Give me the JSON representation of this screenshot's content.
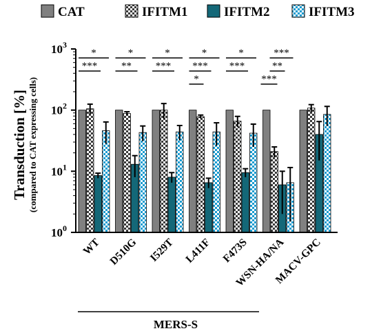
{
  "chart_data": {
    "type": "bar",
    "y_scale": "log",
    "ylim": [
      1,
      1000
    ],
    "yticks": [
      {
        "value": 1,
        "base": "10",
        "exp": "0"
      },
      {
        "value": 10,
        "base": "10",
        "exp": "1"
      },
      {
        "value": 100,
        "base": "10",
        "exp": "2"
      },
      {
        "value": 1000,
        "base": "10",
        "exp": "3"
      }
    ],
    "ylabel": "Transduction [%]",
    "ylabel_sub": "(compared to CAT expressing cells)",
    "categories": [
      "WT",
      "D510G",
      "I529T",
      "L411F",
      "F473S",
      "WSN-HA/NA",
      "MACV-GPC"
    ],
    "group_label": "MERS-S",
    "grid": false,
    "legend_position": "top",
    "series": [
      {
        "name": "CAT",
        "color": "#808080",
        "pattern": "solid",
        "values": [
          100,
          100,
          100,
          100,
          100,
          100,
          100
        ],
        "errors": [
          0,
          0,
          0,
          0,
          0,
          0,
          0
        ]
      },
      {
        "name": "IFITM1",
        "color": "#3a3a3a",
        "pattern": "checker",
        "values": [
          105,
          88,
          100,
          78,
          66,
          21,
          108
        ],
        "errors": [
          20,
          6,
          28,
          5,
          13,
          4,
          15
        ]
      },
      {
        "name": "IFITM2",
        "color": "#146878",
        "pattern": "solid",
        "values": [
          8.5,
          13,
          8,
          6.5,
          9.5,
          6,
          40
        ],
        "errors": [
          0.8,
          5,
          1.5,
          1.2,
          1.5,
          4,
          25
        ]
      },
      {
        "name": "IFITM3",
        "color": "#1a9bd0",
        "pattern": "checker",
        "values": [
          46,
          43,
          44,
          44,
          42,
          6.5,
          85
        ],
        "errors": [
          18,
          12,
          12,
          18,
          17,
          5,
          30
        ]
      }
    ],
    "significance": [
      {
        "category": "WT",
        "marks": [
          "*",
          "***"
        ]
      },
      {
        "category": "D510G",
        "marks": [
          "*",
          "**"
        ]
      },
      {
        "category": "I529T",
        "marks": [
          "*",
          "***"
        ]
      },
      {
        "category": "L411F",
        "marks": [
          "*",
          "***",
          "*"
        ]
      },
      {
        "category": "F473S",
        "marks": [
          "*",
          "***"
        ]
      },
      {
        "category": "WSN-HA/NA",
        "marks": [
          "***",
          "**",
          "***"
        ]
      }
    ]
  }
}
